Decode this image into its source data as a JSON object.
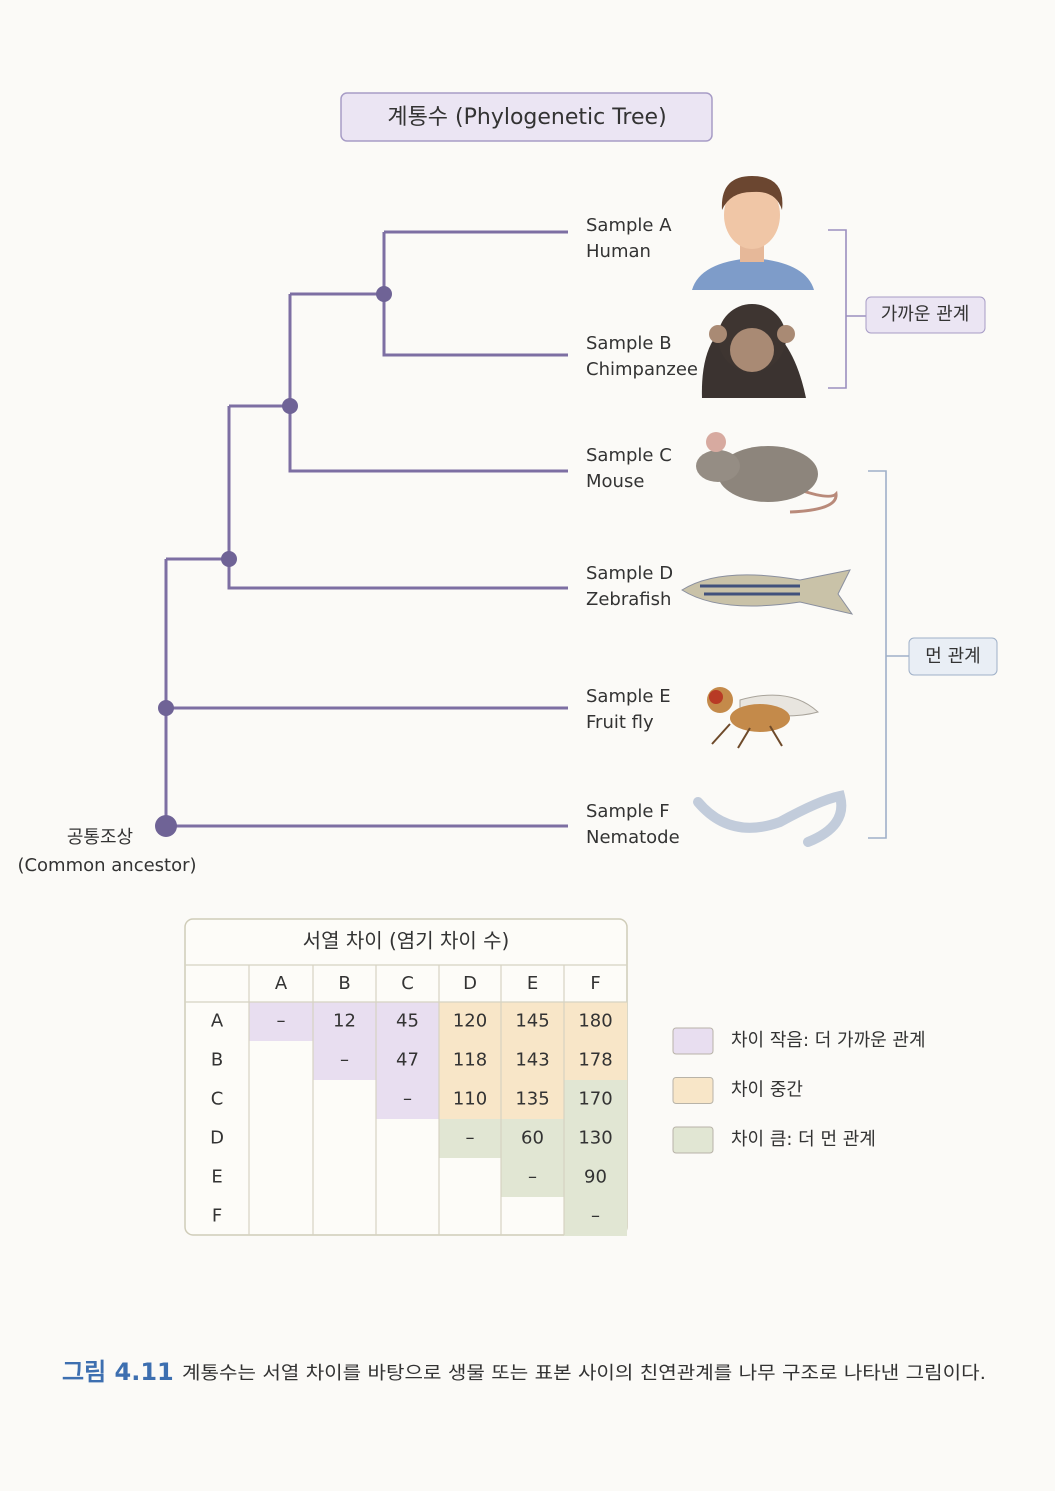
{
  "title": "계통수 (Phylogenetic Tree)",
  "leaves": [
    {
      "sample": "Sample A",
      "name": "Human"
    },
    {
      "sample": "Sample B",
      "name": "Chimpanzee"
    },
    {
      "sample": "Sample C",
      "name": "Mouse"
    },
    {
      "sample": "Sample D",
      "name": "Zebrafish"
    },
    {
      "sample": "Sample E",
      "name": "Fruit fly"
    },
    {
      "sample": "Sample F",
      "name": "Nematode"
    }
  ],
  "root": {
    "label": "공통조상",
    "sublabel": "(Common ancestor)"
  },
  "groups": [
    {
      "label": "가까운 관계"
    },
    {
      "label": "먼 관계"
    }
  ],
  "table": {
    "title": "서열 차이 (염기 차이 수)",
    "columns": [
      "A",
      "B",
      "C",
      "D",
      "E",
      "F"
    ],
    "rows": [
      {
        "label": "A",
        "cells": [
          "–",
          12,
          45,
          120,
          145,
          180
        ]
      },
      {
        "label": "B",
        "cells": [
          "–",
          47,
          118,
          143,
          178
        ]
      },
      {
        "label": "C",
        "cells": [
          "–",
          110,
          135,
          170
        ]
      },
      {
        "label": "D",
        "cells": [
          "–",
          60,
          130
        ]
      },
      {
        "label": "E",
        "cells": [
          "–",
          90
        ]
      },
      {
        "label": "F",
        "cells": [
          "–"
        ]
      }
    ]
  },
  "legend": [
    {
      "label": "차이 작음: 더 가까운 관계",
      "color": "#e8def0"
    },
    {
      "label": "차이 중간",
      "color": "#f8e6c8"
    },
    {
      "label": "차이 큼: 더 먼 관계",
      "color": "#e1e6d3"
    }
  ],
  "caption": {
    "label": "그림 4.11",
    "text": "계통수는 서열 차이를 바탕으로 생물 또는 표본 사이의 친연관계를 나무 구조로 나타낸 그림이다."
  }
}
